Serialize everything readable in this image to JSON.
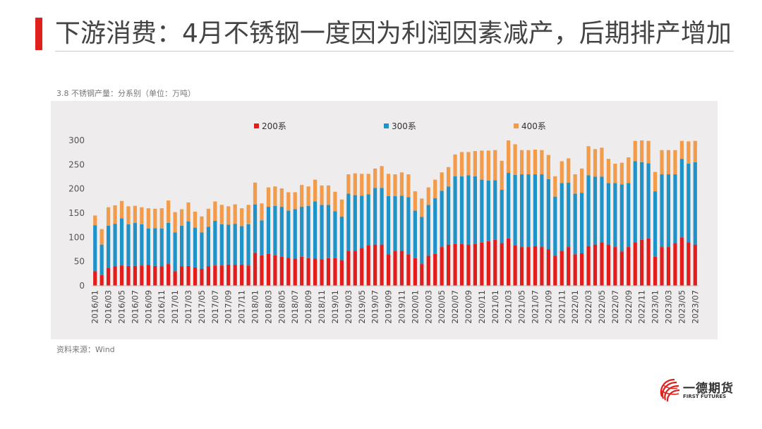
{
  "page": {
    "title": "下游消费：4月不锈钢一度因为利润因素减产，后期排产增加",
    "subtitle": "3.8 不锈钢产量：分系别（单位：万吨）",
    "source": "资料来源：Wind",
    "logo": {
      "name_cn": "一德期货",
      "name_en": "FIRST FUTURES",
      "icon": "ribbon-sphere-icon",
      "color": "#e0201b"
    }
  },
  "chart_data": {
    "type": "bar",
    "stacked": true,
    "title": "",
    "xlabel": "",
    "ylabel": "",
    "ylim": [
      0,
      300
    ],
    "yticks": [
      0,
      50,
      100,
      150,
      200,
      250,
      300
    ],
    "grid": false,
    "legend_position": "top",
    "x_tick_labels": [
      "2016/01",
      "2016/03",
      "2016/05",
      "2016/07",
      "2016/09",
      "2016/11",
      "2017/01",
      "2017/03",
      "2017/05",
      "2017/07",
      "2017/09",
      "2017/11",
      "2018/01",
      "2018/03",
      "2018/05",
      "2018/07",
      "2018/09",
      "2018/11",
      "2019/01",
      "2019/03",
      "2019/05",
      "2019/07",
      "2019/09",
      "2019/11",
      "2020/01",
      "2020/03",
      "2020/05",
      "2020/07",
      "2020/09",
      "2020/11",
      "2021/01",
      "2021/03",
      "2021/05",
      "2021/07",
      "2021/09",
      "2021/11",
      "2022/01",
      "2022/03",
      "2022/05",
      "2022/07",
      "2022/09",
      "2022/11",
      "2023/01",
      "2023/03",
      "2023/05",
      "2023/07"
    ],
    "categories": [
      "2016/01",
      "2016/02",
      "2016/03",
      "2016/04",
      "2016/05",
      "2016/06",
      "2016/07",
      "2016/08",
      "2016/09",
      "2016/10",
      "2016/11",
      "2016/12",
      "2017/01",
      "2017/02",
      "2017/03",
      "2017/04",
      "2017/05",
      "2017/06",
      "2017/07",
      "2017/08",
      "2017/09",
      "2017/10",
      "2017/11",
      "2017/12",
      "2018/01",
      "2018/02",
      "2018/03",
      "2018/04",
      "2018/05",
      "2018/06",
      "2018/07",
      "2018/08",
      "2018/09",
      "2018/10",
      "2018/11",
      "2018/12",
      "2019/01",
      "2019/02",
      "2019/03",
      "2019/04",
      "2019/05",
      "2019/06",
      "2019/07",
      "2019/08",
      "2019/09",
      "2019/10",
      "2019/11",
      "2019/12",
      "2020/01",
      "2020/02",
      "2020/03",
      "2020/04",
      "2020/05",
      "2020/06",
      "2020/07",
      "2020/08",
      "2020/09",
      "2020/10",
      "2020/11",
      "2020/12",
      "2021/01",
      "2021/02",
      "2021/03",
      "2021/04",
      "2021/05",
      "2021/06",
      "2021/07",
      "2021/08",
      "2021/09",
      "2021/10",
      "2021/11",
      "2021/12",
      "2022/01",
      "2022/02",
      "2022/03",
      "2022/04",
      "2022/05",
      "2022/06",
      "2022/07",
      "2022/08",
      "2022/09",
      "2022/10",
      "2022/11",
      "2022/12",
      "2023/01",
      "2023/02",
      "2023/03",
      "2023/04",
      "2023/05",
      "2023/06",
      "2023/07"
    ],
    "series": [
      {
        "name": "200系",
        "color": "#e31c1c",
        "values": [
          30,
          22,
          37,
          40,
          42,
          41,
          41,
          42,
          43,
          41,
          40,
          45,
          30,
          40,
          41,
          38,
          35,
          40,
          42,
          42,
          44,
          43,
          44,
          42,
          68,
          63,
          66,
          63,
          60,
          58,
          56,
          60,
          57,
          56,
          55,
          57,
          57,
          53,
          72,
          72,
          78,
          84,
          85,
          85,
          65,
          72,
          72,
          65,
          57,
          45,
          62,
          66,
          80,
          85,
          86,
          86,
          85,
          86,
          89,
          92,
          95,
          88,
          98,
          84,
          80,
          80,
          82,
          80,
          75,
          62,
          72,
          80,
          65,
          67,
          82,
          85,
          90,
          85,
          80,
          71,
          80,
          90,
          95,
          98,
          60,
          80,
          80,
          88,
          100,
          90,
          85
        ]
      },
      {
        "name": "300系",
        "color": "#1f93c8",
        "values": [
          95,
          63,
          87,
          88,
          97,
          86,
          89,
          85,
          75,
          78,
          78,
          85,
          80,
          84,
          92,
          82,
          75,
          82,
          92,
          85,
          82,
          85,
          79,
          85,
          100,
          72,
          97,
          102,
          103,
          97,
          102,
          103,
          108,
          118,
          112,
          110,
          97,
          90,
          118,
          115,
          108,
          105,
          117,
          117,
          120,
          113,
          114,
          118,
          98,
          97,
          105,
          115,
          116,
          120,
          140,
          140,
          143,
          140,
          130,
          125,
          123,
          110,
          135,
          145,
          150,
          150,
          148,
          150,
          145,
          122,
          140,
          133,
          125,
          125,
          146,
          140,
          135,
          127,
          132,
          138,
          132,
          167,
          160,
          155,
          135,
          150,
          150,
          142,
          162,
          162,
          170
        ]
      },
      {
        "name": "400系",
        "color": "#f29b4a",
        "values": [
          20,
          32,
          38,
          38,
          36,
          37,
          35,
          35,
          42,
          40,
          42,
          46,
          42,
          34,
          39,
          33,
          33,
          37,
          40,
          40,
          38,
          40,
          37,
          40,
          45,
          35,
          40,
          40,
          38,
          38,
          35,
          45,
          40,
          45,
          40,
          40,
          40,
          35,
          40,
          45,
          45,
          42,
          40,
          45,
          46,
          45,
          48,
          47,
          40,
          38,
          36,
          38,
          38,
          40,
          45,
          50,
          48,
          52,
          60,
          62,
          62,
          60,
          67,
          63,
          50,
          50,
          51,
          50,
          50,
          42,
          45,
          50,
          40,
          50,
          60,
          57,
          60,
          50,
          40,
          45,
          53,
          42,
          45,
          46,
          40,
          50,
          50,
          50,
          37,
          46,
          44
        ]
      }
    ]
  }
}
